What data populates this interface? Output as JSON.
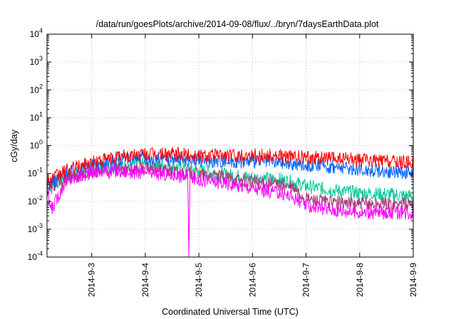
{
  "chart_data": {
    "type": "line",
    "title": "/data/run/goesPlots/archive/2014-09-08/flux/../bryn/7daysEarthData.plot",
    "xlabel": "Coordinated Universal Time (UTC)",
    "ylabel": "cGy/day",
    "x_scale": "time",
    "xlim": [
      "2014-09-02T04:00",
      "2014-09-09T00:00"
    ],
    "x_ticks": [
      "2014-9-3",
      "2014-9-4",
      "2014-9-5",
      "2014-9-6",
      "2014-9-7",
      "2014-9-8",
      "2014-9-9"
    ],
    "y_scale": "log",
    "ylim": [
      0.0001,
      10000
    ],
    "y_ticks": [
      {
        "value": 0.0001,
        "base": "10",
        "exp": "-4"
      },
      {
        "value": 0.001,
        "base": "10",
        "exp": "-3"
      },
      {
        "value": 0.01,
        "base": "10",
        "exp": "-2"
      },
      {
        "value": 0.1,
        "base": "10",
        "exp": "-1"
      },
      {
        "value": 1,
        "base": "10",
        "exp": "0"
      },
      {
        "value": 10,
        "base": "10",
        "exp": "1"
      },
      {
        "value": 100,
        "base": "10",
        "exp": "2"
      },
      {
        "value": 1000,
        "base": "10",
        "exp": "3"
      },
      {
        "value": 10000,
        "base": "10",
        "exp": "4"
      }
    ],
    "grid": true,
    "legend": "none",
    "series": [
      {
        "color": "#00c896",
        "x": [
          "2014-09-02T04:00",
          "2014-09-02T12:00",
          "2014-09-03T00:00",
          "2014-09-03T12:00",
          "2014-09-04T00:00",
          "2014-09-04T12:00",
          "2014-09-05T00:00",
          "2014-09-05T12:00",
          "2014-09-06T00:00",
          "2014-09-06T12:00",
          "2014-09-06T18:00",
          "2014-09-07T00:00",
          "2014-09-07T12:00",
          "2014-09-08T00:00",
          "2014-09-08T12:00",
          "2014-09-09T00:00"
        ],
        "y": [
          0.03,
          0.07,
          0.14,
          0.2,
          0.22,
          0.18,
          0.13,
          0.09,
          0.07,
          0.06,
          0.05,
          0.035,
          0.025,
          0.02,
          0.018,
          0.015
        ]
      },
      {
        "color": "#a83c78",
        "x": [
          "2014-09-02T04:00",
          "2014-09-02T12:00",
          "2014-09-03T00:00",
          "2014-09-03T12:00",
          "2014-09-04T00:00",
          "2014-09-04T12:00",
          "2014-09-05T00:00",
          "2014-09-05T12:00",
          "2014-09-06T00:00",
          "2014-09-06T12:00",
          "2014-09-06T18:00",
          "2014-09-07T00:00",
          "2014-09-07T12:00",
          "2014-09-08T00:00",
          "2014-09-08T12:00",
          "2014-09-09T00:00"
        ],
        "y": [
          0.025,
          0.06,
          0.12,
          0.15,
          0.15,
          0.12,
          0.09,
          0.07,
          0.05,
          0.04,
          0.03,
          0.012,
          0.009,
          0.008,
          0.008,
          0.008
        ]
      },
      {
        "color": "#0064ff",
        "x": [
          "2014-09-02T04:00",
          "2014-09-02T12:00",
          "2014-09-03T00:00",
          "2014-09-03T12:00",
          "2014-09-04T00:00",
          "2014-09-04T12:00",
          "2014-09-05T00:00",
          "2014-09-05T12:00",
          "2014-09-06T00:00",
          "2014-09-06T12:00",
          "2014-09-06T18:00",
          "2014-09-07T00:00",
          "2014-09-07T12:00",
          "2014-09-08T00:00",
          "2014-09-08T12:00",
          "2014-09-09T00:00"
        ],
        "y": [
          0.04,
          0.1,
          0.2,
          0.3,
          0.35,
          0.35,
          0.3,
          0.28,
          0.27,
          0.25,
          0.22,
          0.2,
          0.17,
          0.14,
          0.12,
          0.1
        ]
      },
      {
        "color": "#ff0000",
        "x": [
          "2014-09-02T04:00",
          "2014-09-02T12:00",
          "2014-09-03T00:00",
          "2014-09-03T12:00",
          "2014-09-04T00:00",
          "2014-09-04T12:00",
          "2014-09-05T00:00",
          "2014-09-05T12:00",
          "2014-09-06T00:00",
          "2014-09-06T12:00",
          "2014-09-06T18:00",
          "2014-09-07T00:00",
          "2014-09-07T12:00",
          "2014-09-08T00:00",
          "2014-09-08T12:00",
          "2014-09-09T00:00"
        ],
        "y": [
          0.05,
          0.12,
          0.25,
          0.4,
          0.5,
          0.5,
          0.45,
          0.45,
          0.45,
          0.42,
          0.4,
          0.38,
          0.35,
          0.3,
          0.28,
          0.25
        ]
      },
      {
        "color": "#ff00ff",
        "x": [
          "2014-09-02T04:00",
          "2014-09-02T06:00",
          "2014-09-02T12:00",
          "2014-09-03T00:00",
          "2014-09-03T12:00",
          "2014-09-04T00:00",
          "2014-09-04T12:00",
          "2014-09-04T19:00",
          "2014-09-04T19:30",
          "2014-09-04T20:00",
          "2014-09-05T00:00",
          "2014-09-05T12:00",
          "2014-09-06T00:00",
          "2014-09-06T12:00",
          "2014-09-06T18:00",
          "2014-09-07T00:00",
          "2014-09-07T12:00",
          "2014-09-08T00:00",
          "2014-09-08T12:00",
          "2014-09-09T00:00"
        ],
        "y": [
          0.02,
          0.005,
          0.05,
          0.11,
          0.12,
          0.11,
          0.09,
          0.08,
          0.0001,
          0.07,
          0.06,
          0.045,
          0.03,
          0.02,
          0.015,
          0.007,
          0.005,
          0.004,
          0.004,
          0.004
        ]
      }
    ]
  }
}
